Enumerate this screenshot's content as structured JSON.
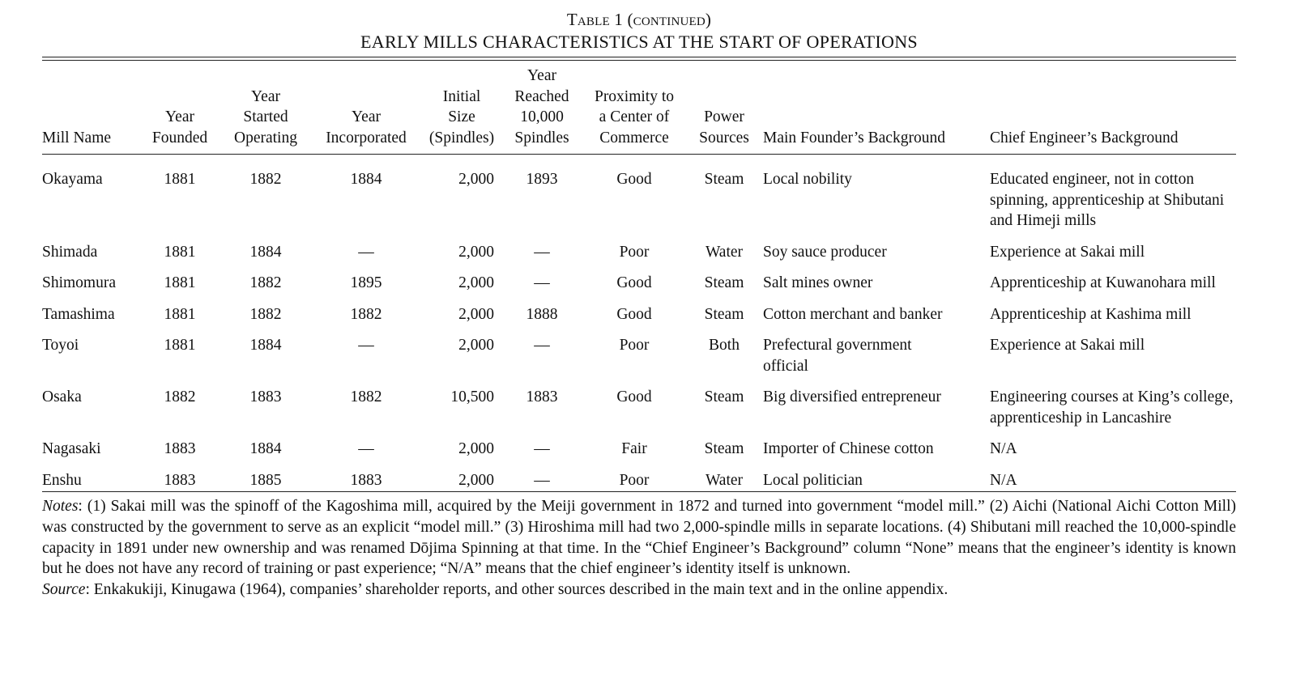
{
  "caption": {
    "line1": "Table 1 (continued)",
    "line2": "EARLY MILLS CHARACTERISTICS AT THE START OF OPERATIONS"
  },
  "headers": {
    "mill_name": "Mill Name",
    "year_founded": [
      "Year",
      "Founded"
    ],
    "year_started": [
      "Year",
      "Started",
      "Operating"
    ],
    "year_incorporated": [
      "Year",
      "Incorporated"
    ],
    "initial_size": [
      "Initial",
      "Size",
      "(Spindles)"
    ],
    "year_reached": [
      "Year",
      "Reached",
      "10,000",
      "Spindles"
    ],
    "proximity": [
      "Proximity to",
      "a Center of",
      "Commerce"
    ],
    "power": [
      "Power",
      "Sources"
    ],
    "founder": "Main Founder’s Background",
    "engineer": "Chief Engineer’s Background"
  },
  "rows": [
    {
      "name": "Okayama",
      "founded": "1881",
      "started": "1882",
      "incorporated": "1884",
      "size": "2,000",
      "reached": "1893",
      "proximity": "Good",
      "power": "Steam",
      "founder": "Local nobility",
      "engineer": "Educated engineer, not in cotton spinning, apprenticeship at Shibutani and Himeji mills"
    },
    {
      "name": "Shimada",
      "founded": "1881",
      "started": "1884",
      "incorporated": "—",
      "size": "2,000",
      "reached": "—",
      "proximity": "Poor",
      "power": "Water",
      "founder": "Soy sauce producer",
      "engineer": "Experience at Sakai mill"
    },
    {
      "name": "Shimomura",
      "founded": "1881",
      "started": "1882",
      "incorporated": "1895",
      "size": "2,000",
      "reached": "—",
      "proximity": "Good",
      "power": "Steam",
      "founder": "Salt mines owner",
      "engineer": "Apprenticeship at Kuwanohara mill"
    },
    {
      "name": "Tamashima",
      "founded": "1881",
      "started": "1882",
      "incorporated": "1882",
      "size": "2,000",
      "reached": "1888",
      "proximity": "Good",
      "power": "Steam",
      "founder": "Cotton merchant and banker",
      "engineer": "Apprenticeship at Kashima mill"
    },
    {
      "name": "Toyoi",
      "founded": "1881",
      "started": "1884",
      "incorporated": "—",
      "size": "2,000",
      "reached": "—",
      "proximity": "Poor",
      "power": "Both",
      "founder": "Prefectural government official",
      "engineer": "Experience at Sakai mill"
    },
    {
      "name": "Osaka",
      "founded": "1882",
      "started": "1883",
      "incorporated": "1882",
      "size": "10,500",
      "reached": "1883",
      "proximity": "Good",
      "power": "Steam",
      "founder": "Big diversified entrepreneur",
      "engineer": "Engineering courses at King’s college, apprenticeship in Lancashire"
    },
    {
      "name": "Nagasaki",
      "founded": "1883",
      "started": "1884",
      "incorporated": "—",
      "size": "2,000",
      "reached": "—",
      "proximity": "Fair",
      "power": "Steam",
      "founder": "Importer of Chinese cotton",
      "engineer": "N/A"
    },
    {
      "name": "Enshu",
      "founded": "1883",
      "started": "1885",
      "incorporated": "1883",
      "size": "2,000",
      "reached": "—",
      "proximity": "Poor",
      "power": "Water",
      "founder": "Local politician",
      "engineer": "N/A"
    }
  ],
  "notes": {
    "label": "Notes",
    "text": ": (1) Sakai mill was the spinoff of the Kagoshima mill, acquired by the Meiji government in 1872 and turned into government “model mill.” (2) Aichi (National Aichi Cotton Mill) was constructed by the government to serve as an explicit “model mill.” (3) Hiroshima mill had two 2,000-spindle mills in separate locations. (4) Shibutani mill reached the 10,000-spindle capacity in 1891 under new ownership and was renamed Dōjima Spinning at that time. In the “Chief Engineer’s Background” column “None” means that the engineer’s identity is known but he does not have any record of training or past experience; “N/A” means that the chief engineer’s identity itself is unknown."
  },
  "source": {
    "label": "Source",
    "text": ": Enkakukiji, Kinugawa (1964), companies’ shareholder reports, and other sources described in the main text and in the online appendix."
  }
}
